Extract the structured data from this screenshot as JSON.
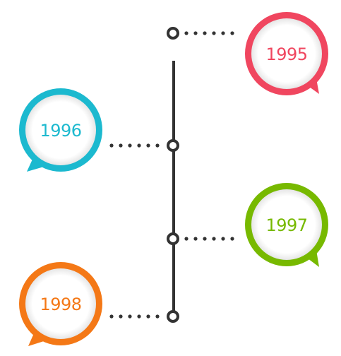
{
  "timeline": {
    "events": [
      {
        "year": "1995",
        "color": "#f0465f"
      },
      {
        "year": "1996",
        "color": "#1cb9cf"
      },
      {
        "year": "1997",
        "color": "#77b900"
      },
      {
        "year": "1998",
        "color": "#f47816"
      }
    ],
    "line_color": "#333333"
  }
}
